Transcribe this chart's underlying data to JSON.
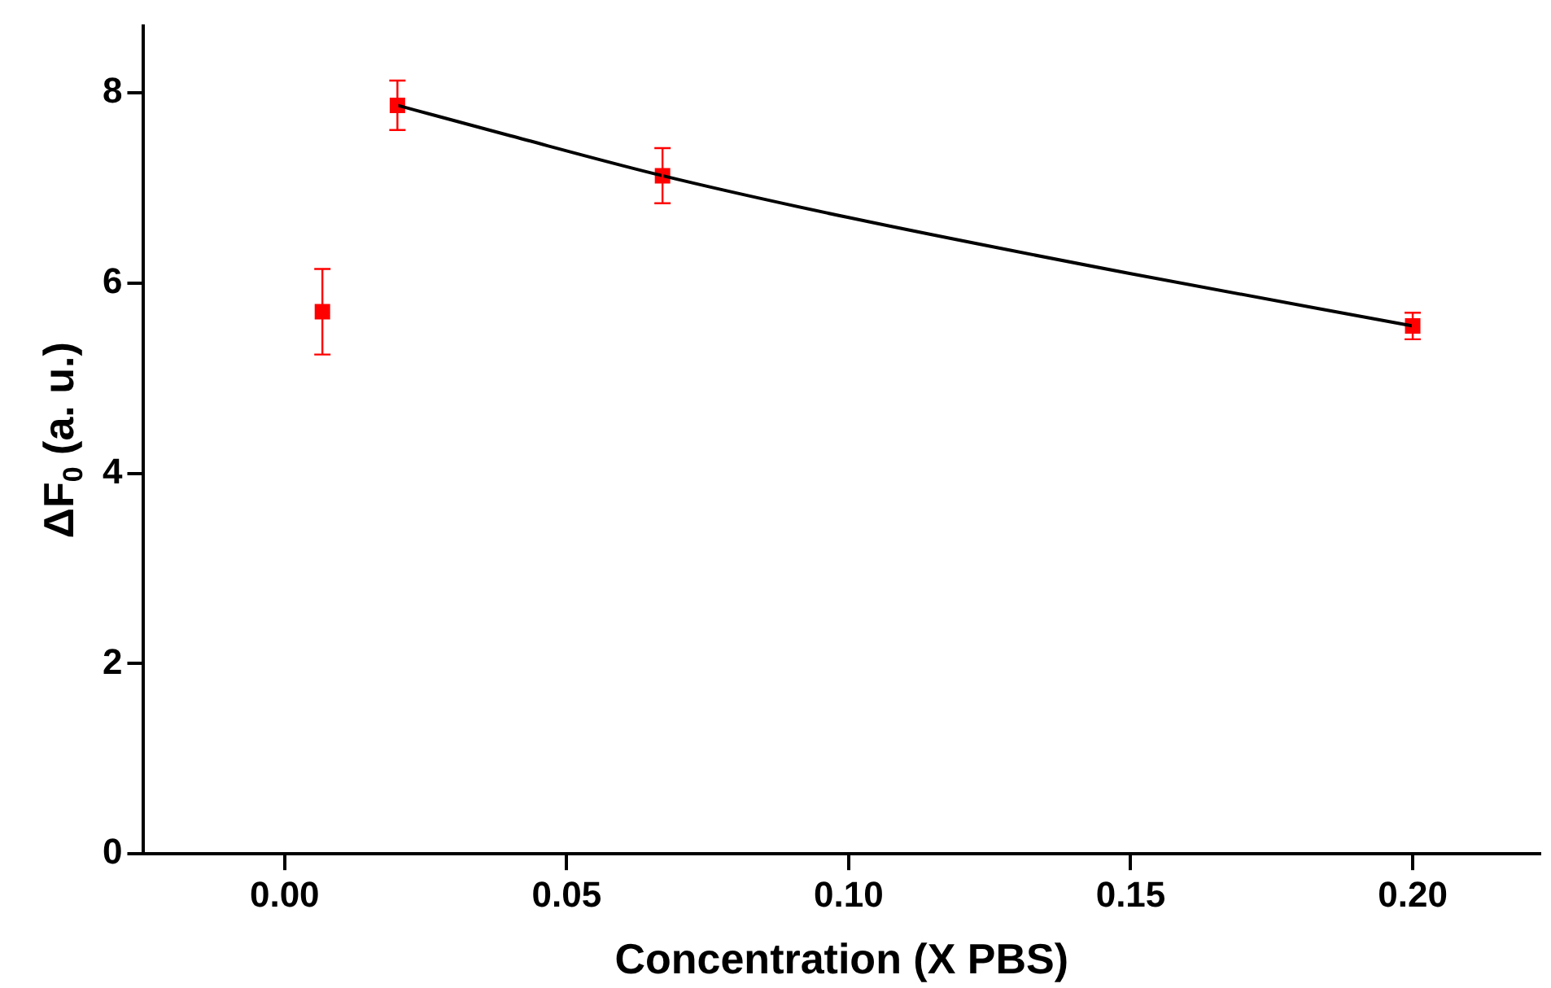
{
  "chart_data": {
    "type": "scatter",
    "xlabel": "Concentration (X PBS)",
    "ylabel": "ΔF$_{0}$ (a. u.)",
    "xlim": [
      -0.025,
      0.2225
    ],
    "ylim": [
      0,
      8.7
    ],
    "xticks": [
      {
        "value": 0,
        "label": "0.00"
      },
      {
        "value": 0.05,
        "label": "0.05"
      },
      {
        "value": 0.1,
        "label": "0.10"
      },
      {
        "value": 0.15,
        "label": "0.15"
      },
      {
        "value": 0.2,
        "label": "0.20"
      }
    ],
    "yticks": [
      0,
      2,
      4,
      6,
      8
    ],
    "grid": false,
    "legend": false,
    "series": [
      {
        "type": "line",
        "color": "#000000",
        "marker": "none",
        "line_style": "solid",
        "x": [
          0.02,
          0.04,
          0.067,
          0.1,
          0.15,
          0.2
        ],
        "values": [
          7.87,
          7.55,
          7.13,
          6.69,
          6.1,
          5.55
        ]
      },
      {
        "type": "scatter",
        "color": "#ff0000",
        "marker": "square",
        "x": [
          0.0067,
          0.02,
          0.067,
          0.2
        ],
        "values": [
          5.7,
          7.87,
          7.13,
          5.55
        ],
        "errors": [
          0.45,
          0.26,
          0.29,
          0.14
        ]
      }
    ]
  }
}
